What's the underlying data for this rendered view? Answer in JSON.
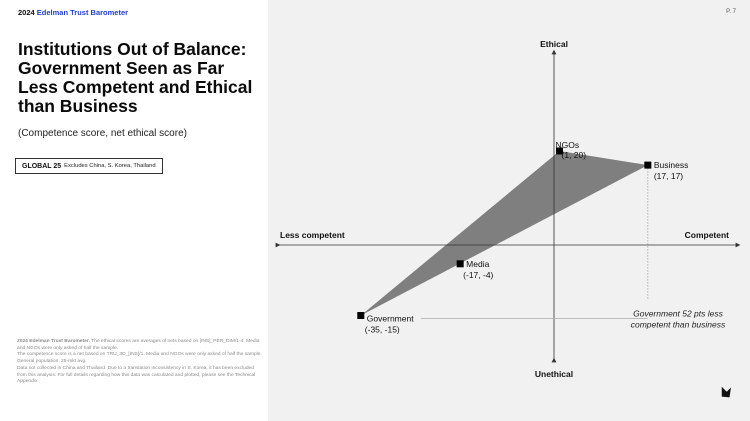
{
  "header": {
    "year": "2024",
    "brand": "Edelman Trust Barometer",
    "page": "P. 7"
  },
  "title": "Institutions Out of Balance: Government Seen as Far Less Competent and Ethical than Business",
  "subtitle": "(Competence score, net ethical score)",
  "global_box": {
    "label": "GLOBAL 25",
    "note": "Excludes China, S. Korea, Thailand"
  },
  "footnote": {
    "source_label": "2024 Edelman Trust Barometer.",
    "lines": [
      "The ethical scores are averages of nets based on [INS]_PER_DIM/1-4. Media and NGOs were only asked of half the sample.",
      "The competence score is a net based on TRU_3D_[INS]/1. Media and NGOs were only asked of half the sample. General population, 25-mkt avg.",
      "Data not collected in China and Thailand. Due to a translation inconsistency in S. Korea, it has been excluded from this analysis. For full details regarding how this data was calculated and plotted, please see the Technical Appendix."
    ]
  },
  "chart_data": {
    "type": "scatter",
    "axes": {
      "x_negative_label": "Less competent",
      "x_positive_label": "Competent",
      "y_positive_label": "Ethical",
      "y_negative_label": "Unethical"
    },
    "xlim": [
      -40,
      35
    ],
    "ylim": [
      -40,
      38
    ],
    "points": [
      {
        "name": "NGOs",
        "x": 1,
        "y": 20,
        "label": "(1, 20)"
      },
      {
        "name": "Business",
        "x": 17,
        "y": 17,
        "label": "(17, 17)"
      },
      {
        "name": "Media",
        "x": -17,
        "y": -4,
        "label": "(-17, -4)"
      },
      {
        "name": "Government",
        "x": -35,
        "y": -15,
        "label": "(-35, -15)"
      }
    ],
    "polygon": [
      "Government",
      "NGOs",
      "Business"
    ],
    "annotation": {
      "line1": "Government 52 pts less",
      "line2": "competent than business"
    },
    "colors": {
      "polygon_fill": "#7f7f7f",
      "marker": "#000000",
      "axis": "#333333"
    }
  },
  "nav": {
    "next_icon": "arrow-down-right-icon"
  }
}
